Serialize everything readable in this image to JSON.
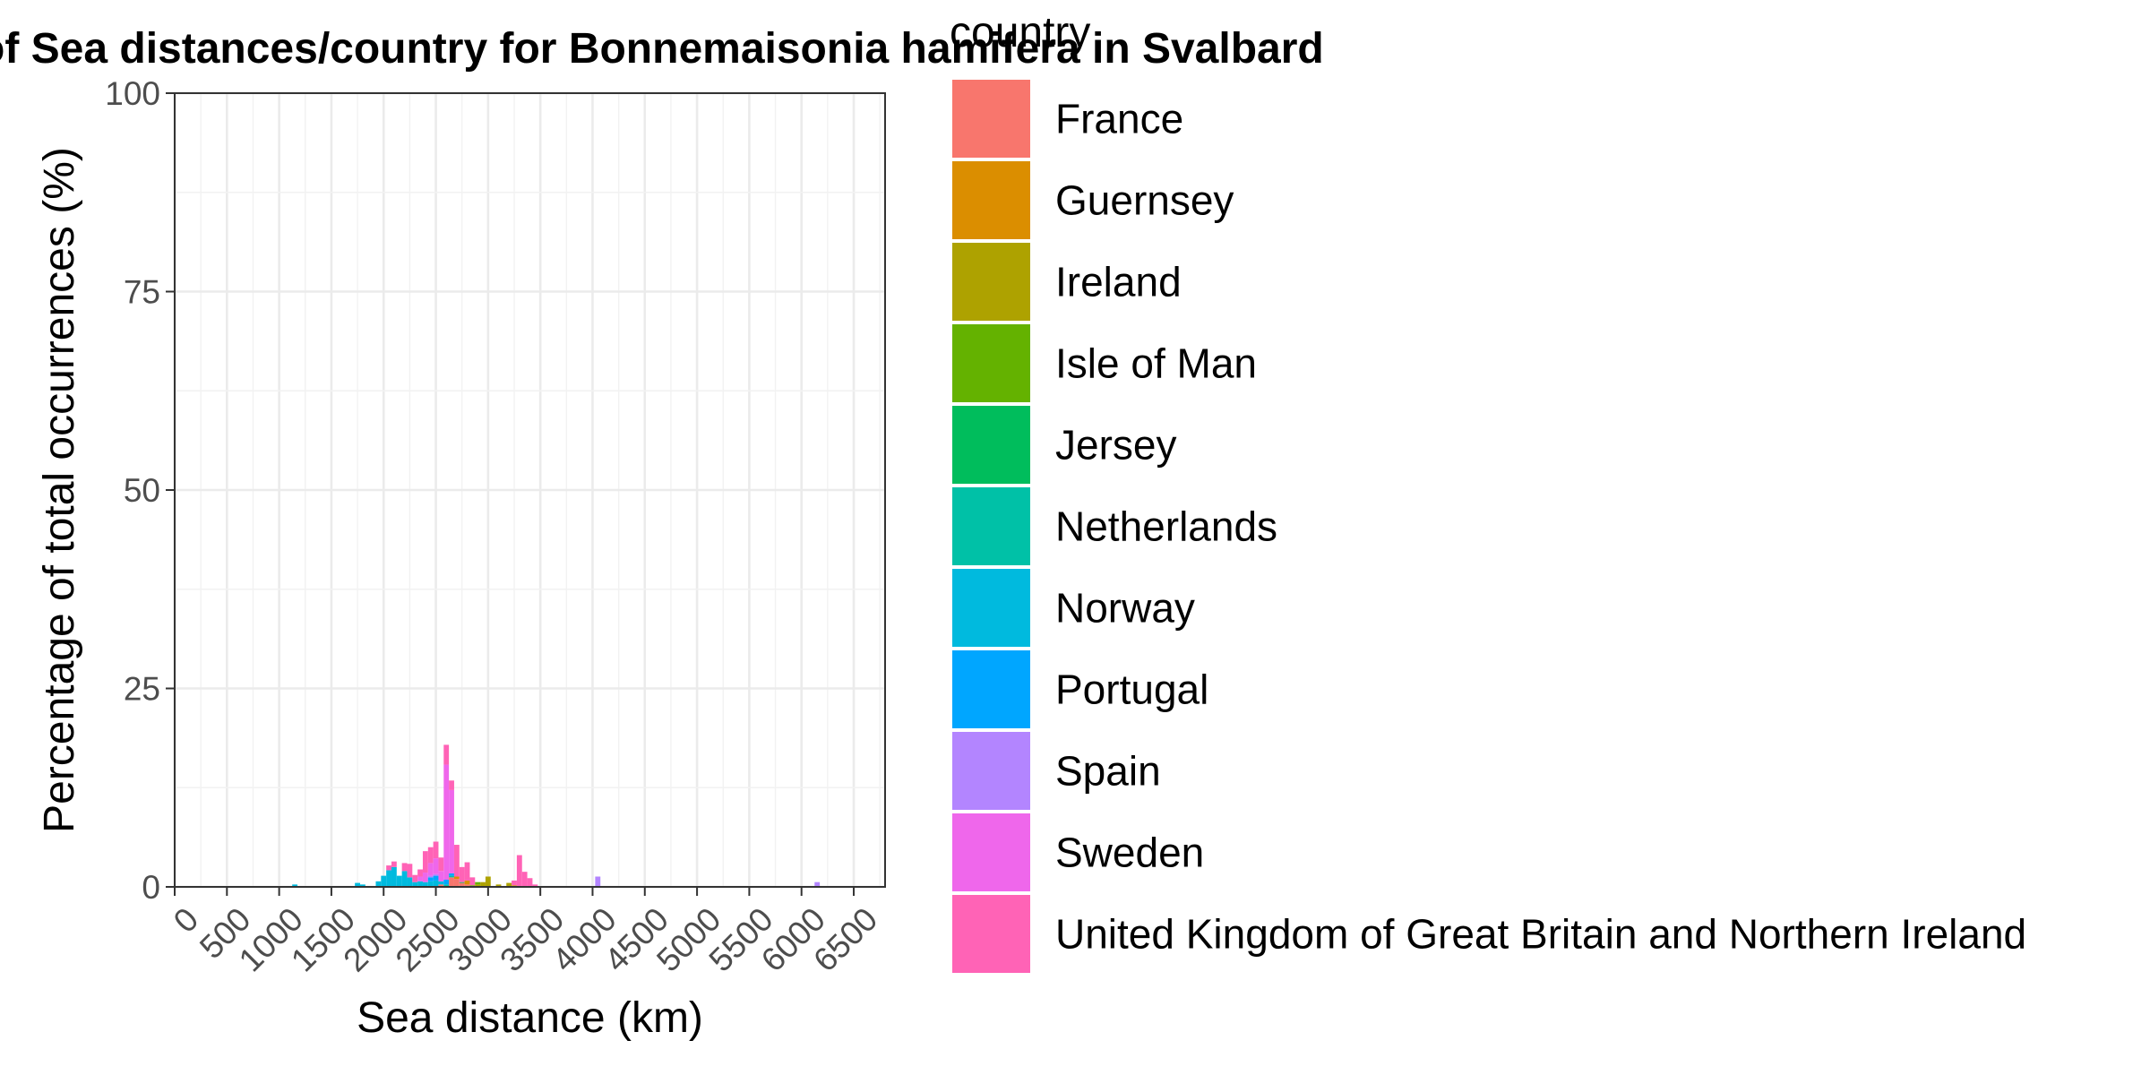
{
  "chart_data": {
    "type": "bar",
    "stacked": true,
    "title": "Histogram of Sea distances/country for Bonnemaisonia hamifera in Svalbard",
    "xlabel": "Sea distance (km)",
    "ylabel": "Percentage of total occurrences (%)",
    "xlim": [
      0,
      6800
    ],
    "ylim": [
      0,
      100
    ],
    "x_ticks": [
      0,
      500,
      1000,
      1500,
      2000,
      2500,
      3000,
      3500,
      4000,
      4500,
      5000,
      5500,
      6000,
      6500
    ],
    "x_tick_labels": [
      "0",
      "500",
      "1000",
      "1500",
      "2000",
      "2500",
      "3000",
      "3500",
      "4000",
      "4500",
      "5000",
      "5500",
      "6000",
      "6500"
    ],
    "y_ticks": [
      0,
      25,
      50,
      75,
      100
    ],
    "y_tick_labels": [
      "0",
      "25",
      "50",
      "75",
      "100"
    ],
    "bin_width": 50,
    "grid": true,
    "legend_position": "right",
    "legend_title": "country",
    "series": [
      {
        "name": "France",
        "color": "#F8766D",
        "points": [
          [
            2550,
            0.3
          ],
          [
            2650,
            1.2
          ],
          [
            2700,
            1.0
          ],
          [
            2750,
            0.5
          ],
          [
            2800,
            0.3
          ]
        ]
      },
      {
        "name": "Guernsey",
        "color": "#DB8E00",
        "points": [
          [
            2700,
            0.3
          ],
          [
            2800,
            0.5
          ],
          [
            3250,
            0.2
          ]
        ]
      },
      {
        "name": "Ireland",
        "color": "#AEA200",
        "points": [
          [
            2900,
            0.3
          ],
          [
            2950,
            0.6
          ],
          [
            3000,
            1.3
          ],
          [
            3100,
            0.3
          ],
          [
            3200,
            0.5
          ]
        ]
      },
      {
        "name": "Isle of Man",
        "color": "#64B200",
        "points": [
          [
            2850,
            0.2
          ],
          [
            2900,
            0.3
          ]
        ]
      },
      {
        "name": "Jersey",
        "color": "#00BD5C",
        "points": [
          [
            2750,
            0.1
          ]
        ]
      },
      {
        "name": "Netherlands",
        "color": "#00C1A7",
        "points": [
          [
            2600,
            0.3
          ],
          [
            2650,
            0.2
          ]
        ]
      },
      {
        "name": "Norway",
        "color": "#00BADE",
        "points": [
          [
            1150,
            0.3
          ],
          [
            1750,
            0.5
          ],
          [
            1800,
            0.3
          ],
          [
            1950,
            0.7
          ],
          [
            2000,
            1.4
          ],
          [
            2050,
            2.1
          ],
          [
            2100,
            2.5
          ],
          [
            2150,
            1.4
          ],
          [
            2200,
            2.0
          ],
          [
            2250,
            1.2
          ],
          [
            2300,
            0.6
          ],
          [
            2350,
            0.7
          ],
          [
            2400,
            0.6
          ],
          [
            2450,
            0.7
          ],
          [
            2500,
            0.8
          ],
          [
            2550,
            0.4
          ]
        ]
      },
      {
        "name": "Portugal",
        "color": "#00A6FF",
        "points": [
          [
            2450,
            0.5
          ],
          [
            2500,
            0.6
          ],
          [
            2600,
            0.6
          ],
          [
            2650,
            0.3
          ]
        ]
      },
      {
        "name": "Spain",
        "color": "#B385FF",
        "points": [
          [
            2450,
            0.2
          ],
          [
            2500,
            0.2
          ],
          [
            4050,
            1.3
          ],
          [
            6150,
            0.6
          ]
        ]
      },
      {
        "name": "Sweden",
        "color": "#EF67EB",
        "points": [
          [
            2350,
            0.6
          ],
          [
            2400,
            1.2
          ],
          [
            2450,
            1.6
          ],
          [
            2500,
            2.0
          ],
          [
            2550,
            1.3
          ],
          [
            2600,
            14.5
          ],
          [
            2650,
            10.5
          ]
        ]
      },
      {
        "name": "United Kingdom of Great Britain and Northern Ireland",
        "color": "#FF63B6",
        "points": [
          [
            2050,
            0.6
          ],
          [
            2100,
            0.7
          ],
          [
            2200,
            1.0
          ],
          [
            2250,
            1.7
          ],
          [
            2300,
            0.9
          ],
          [
            2350,
            0.9
          ],
          [
            2400,
            2.7
          ],
          [
            2450,
            2.0
          ],
          [
            2500,
            2.1
          ],
          [
            2550,
            1.7
          ],
          [
            2600,
            2.5
          ],
          [
            2650,
            1.2
          ],
          [
            2700,
            4.0
          ],
          [
            2750,
            1.9
          ],
          [
            2800,
            2.3
          ],
          [
            2850,
            1.0
          ],
          [
            3250,
            0.6
          ],
          [
            3300,
            4.0
          ],
          [
            3350,
            1.9
          ],
          [
            3400,
            1.1
          ],
          [
            3450,
            0.3
          ]
        ]
      }
    ]
  }
}
